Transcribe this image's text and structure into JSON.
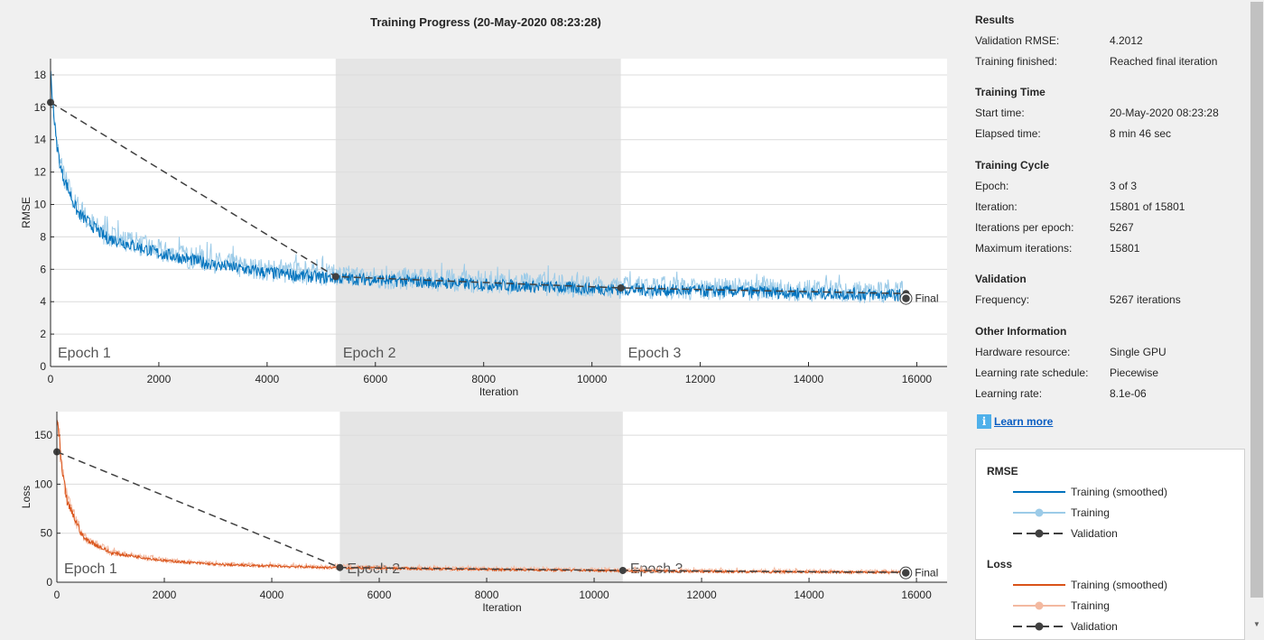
{
  "header": {
    "title": "Training Progress (20-May-2020 08:23:28)"
  },
  "colors": {
    "rmse_smoothed": "#0072bd",
    "rmse_raw": "#9ccbe8",
    "loss_smoothed": "#d95319",
    "loss_raw": "#f3b9a0",
    "validation": "#404040",
    "epoch_shade": "#e5e5e5",
    "link": "#0a5dc2"
  },
  "panel": {
    "results": {
      "heading": "Results",
      "rows": [
        {
          "label": "Validation RMSE:",
          "value": "4.2012"
        },
        {
          "label": "Training finished:",
          "value": "Reached final iteration"
        }
      ]
    },
    "time": {
      "heading": "Training Time",
      "rows": [
        {
          "label": "Start time:",
          "value": "20-May-2020 08:23:28"
        },
        {
          "label": "Elapsed time:",
          "value": "8 min 46 sec"
        }
      ]
    },
    "cycle": {
      "heading": "Training Cycle",
      "rows": [
        {
          "label": "Epoch:",
          "value": "3 of 3"
        },
        {
          "label": "Iteration:",
          "value": "15801 of 15801"
        },
        {
          "label": "Iterations per epoch:",
          "value": "5267"
        },
        {
          "label": "Maximum iterations:",
          "value": "15801"
        }
      ]
    },
    "validation": {
      "heading": "Validation",
      "rows": [
        {
          "label": "Frequency:",
          "value": "5267 iterations"
        }
      ]
    },
    "other": {
      "heading": "Other Information",
      "rows": [
        {
          "label": "Hardware resource:",
          "value": "Single GPU"
        },
        {
          "label": "Learning rate schedule:",
          "value": "Piecewise"
        },
        {
          "label": "Learning rate:",
          "value": "8.1e-06"
        }
      ]
    },
    "learn_more": "Learn more",
    "info_icon": "i"
  },
  "legend": {
    "rmse": {
      "heading": "RMSE",
      "items": [
        "Training (smoothed)",
        "Training",
        "Validation"
      ]
    },
    "loss": {
      "heading": "Loss",
      "items": [
        "Training (smoothed)",
        "Training",
        "Validation"
      ]
    }
  },
  "chart_data": [
    {
      "type": "line",
      "title": "",
      "xlabel": "Iteration",
      "ylabel": "RMSE",
      "xlim": [
        0,
        16560
      ],
      "ylim": [
        0,
        19
      ],
      "xticks": [
        0,
        2000,
        4000,
        6000,
        8000,
        10000,
        12000,
        14000,
        16000
      ],
      "yticks": [
        0,
        2,
        4,
        6,
        8,
        10,
        12,
        14,
        16,
        18
      ],
      "epochs": [
        {
          "label": "Epoch 1",
          "start": 0,
          "end": 5267
        },
        {
          "label": "Epoch 2",
          "start": 5267,
          "end": 10534
        },
        {
          "label": "Epoch 3",
          "start": 10534,
          "end": 15801
        }
      ],
      "smoothed": {
        "x": [
          0,
          100,
          200,
          500,
          1000,
          2000,
          3000,
          4000,
          5000,
          7000,
          10000,
          13000,
          15801
        ],
        "y": [
          18,
          14,
          12,
          9.5,
          8,
          7,
          6.3,
          5.8,
          5.5,
          5.2,
          4.8,
          4.6,
          4.4
        ]
      },
      "noise_amplitude": 1.4,
      "validation": {
        "x": [
          0,
          5267,
          10534,
          15801
        ],
        "y": [
          16.3,
          5.55,
          4.85,
          4.5
        ]
      },
      "final": {
        "label": "Final",
        "x": 15801,
        "y": 4.2012
      }
    },
    {
      "type": "line",
      "title": "",
      "xlabel": "Iteration",
      "ylabel": "Loss",
      "xlim": [
        0,
        16570
      ],
      "ylim": [
        0,
        174
      ],
      "xticks": [
        0,
        2000,
        4000,
        6000,
        8000,
        10000,
        12000,
        14000,
        16000
      ],
      "yticks": [
        0,
        50,
        100,
        150
      ],
      "epochs": [
        {
          "label": "Epoch 1",
          "start": 0,
          "end": 5267
        },
        {
          "label": "Epoch 2",
          "start": 5267,
          "end": 10534
        },
        {
          "label": "Epoch 3",
          "start": 10534,
          "end": 15801
        }
      ],
      "smoothed": {
        "x": [
          0,
          100,
          200,
          500,
          1000,
          2000,
          3000,
          5000,
          8000,
          12000,
          15801
        ],
        "y": [
          170,
          110,
          80,
          45,
          30,
          22,
          18,
          15,
          13,
          11,
          10
        ]
      },
      "noise_amplitude": 9,
      "validation": {
        "x": [
          0,
          5267,
          10534,
          15801
        ],
        "y": [
          133,
          15,
          12,
          10
        ]
      },
      "final": {
        "label": "Final",
        "x": 15801,
        "y": 9.5
      }
    }
  ]
}
